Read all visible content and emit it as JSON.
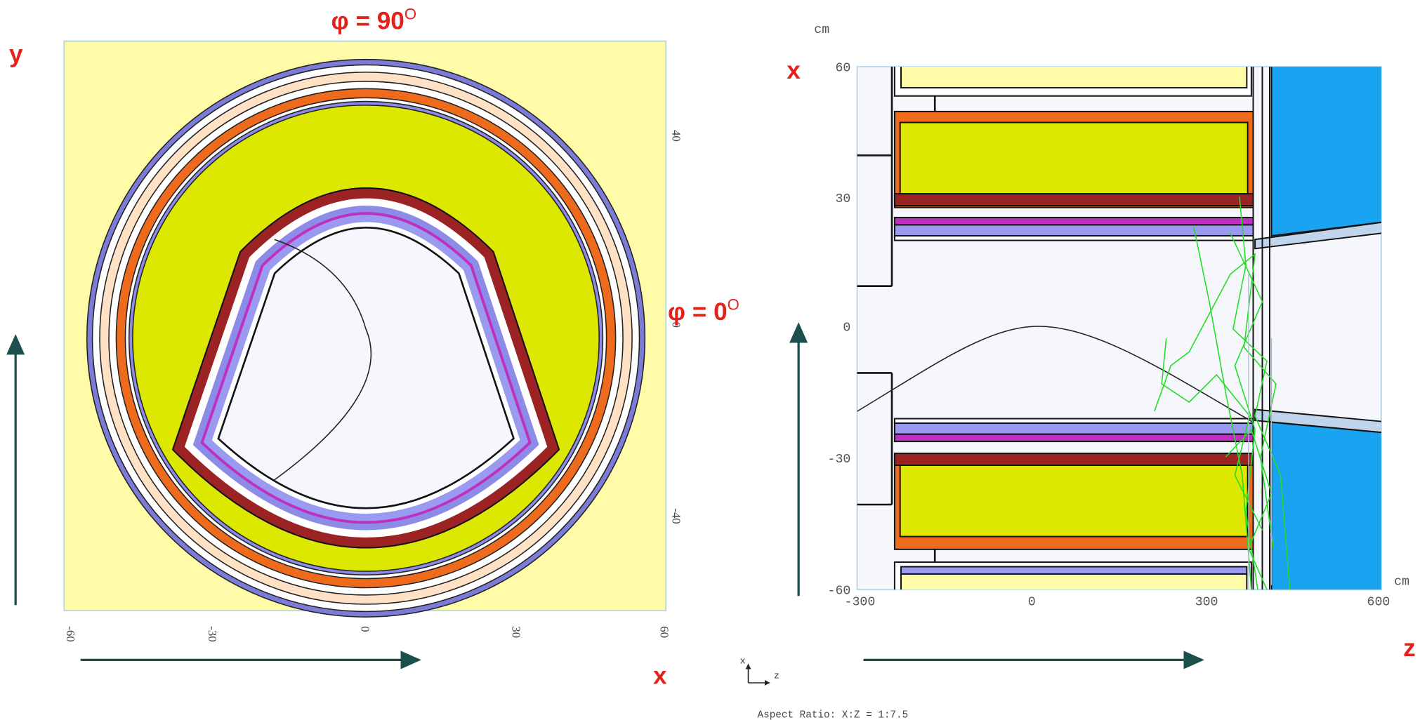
{
  "left_view": {
    "axis_label_y": "y",
    "axis_label_x": "x",
    "angle_top": {
      "text": "φ = 90",
      "sup": "O"
    },
    "angle_right": {
      "text": "φ = 0",
      "sup": "O"
    },
    "x_ticks": [
      "-60",
      "-30",
      "0",
      "30",
      "60"
    ],
    "y_ticks": [
      "40",
      "0",
      "-40"
    ]
  },
  "right_view": {
    "axis_label_x": "x",
    "axis_label_z": "z",
    "unit_top": "cm",
    "unit_right": "cm",
    "y_ticks": [
      "60",
      "30",
      "0",
      "-30",
      "-60"
    ],
    "x_ticks": [
      "-300",
      "0",
      "300",
      "600"
    ],
    "orientation_icon": {
      "up": "x",
      "right": "z"
    },
    "aspect_ratio": "Aspect Ratio: X:Z = 1:7.5"
  }
}
